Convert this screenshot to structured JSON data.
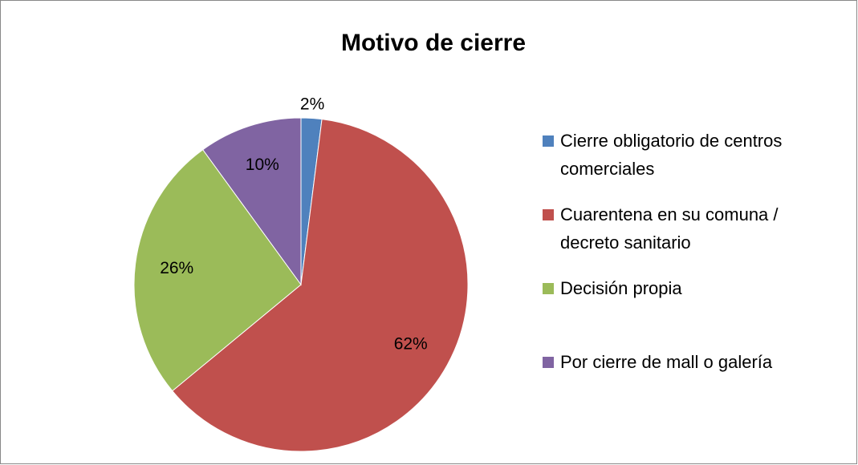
{
  "chart_data": {
    "type": "pie",
    "title": "Motivo de cierre",
    "categories": [
      "Cierre obligatorio de centros comerciales",
      "Cuarentena en su comuna / decreto sanitario",
      "Decisión propia",
      "Por cierre de mall o galería"
    ],
    "values": [
      2,
      62,
      26,
      10
    ],
    "value_labels": [
      "2%",
      "62%",
      "26%",
      "10%"
    ],
    "colors": [
      "#4f81bd",
      "#c0504d",
      "#9bbb59",
      "#8064a2"
    ],
    "legend": "right"
  }
}
